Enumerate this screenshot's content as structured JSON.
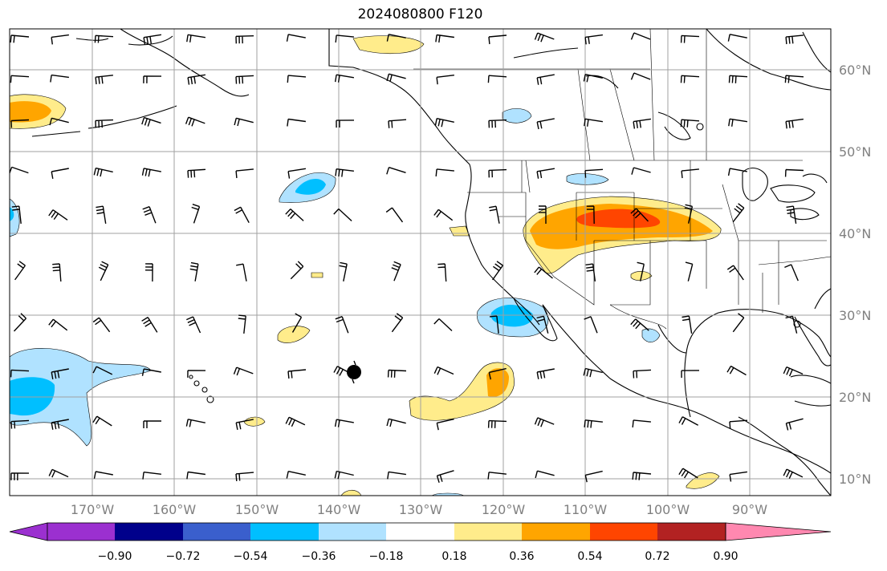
{
  "title": "2024080800 F120",
  "map": {
    "lat_labels": [
      "60°N",
      "50°N",
      "40°N",
      "30°N",
      "20°N",
      "10°N"
    ],
    "lon_labels": [
      "170°W",
      "160°W",
      "150°W",
      "140°W",
      "130°W",
      "120°W",
      "110°W",
      "100°W",
      "90°W"
    ]
  },
  "colorbar": {
    "ticks": [
      "−0.90",
      "−0.72",
      "−0.54",
      "−0.36",
      "−0.18",
      "0.18",
      "0.36",
      "0.54",
      "0.72",
      "0.90"
    ],
    "colors": [
      "#9b30d0",
      "#00008b",
      "#3a5fcd",
      "#00bfff",
      "#b0e2ff",
      "#ffffff",
      "#ffec8b",
      "#ffa500",
      "#ff4500",
      "#b22222",
      "#ff88b0"
    ]
  },
  "fill_colors": {
    "light_blue": "#b0e2ff",
    "blue": "#00bfff",
    "yellow": "#ffec8b",
    "orange": "#ffa500",
    "red_orange": "#ff4500"
  }
}
